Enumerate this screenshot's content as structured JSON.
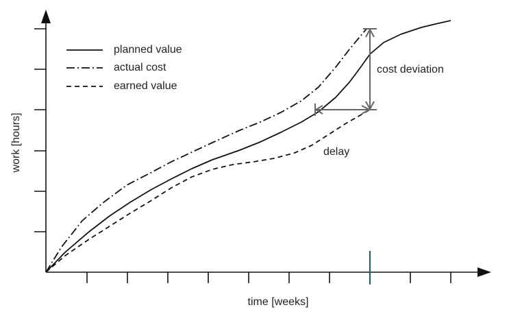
{
  "axes": {
    "x_label": "time [weeks]",
    "y_label": "work [hours]"
  },
  "legend": [
    "planned value",
    "actual cost",
    "earned value"
  ],
  "annotations": {
    "cost": "cost deviation",
    "delay": "delay"
  }
}
